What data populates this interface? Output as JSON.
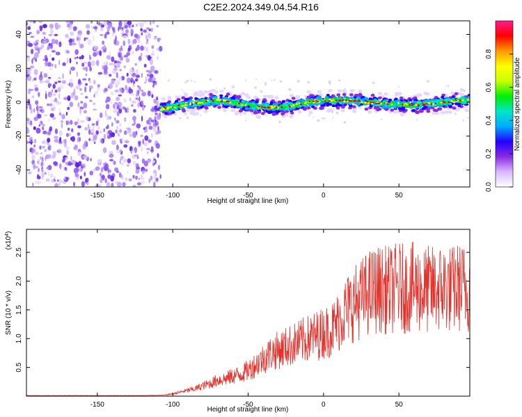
{
  "title": "C2E2.2024.349.04.54.R16",
  "colors": {
    "axis": "#000000",
    "snr_line": "#e8302a",
    "noise_dot": "#7a3cf0",
    "colorbar_stops": [
      "#ffffff",
      "#d9b8ff",
      "#8a2be2",
      "#2200ff",
      "#00aaff",
      "#00e6c8",
      "#00ee00",
      "#c8ff00",
      "#ffff00",
      "#ff9900",
      "#ff0000",
      "#ff1a8c"
    ]
  },
  "chart_data": [
    {
      "type": "heatmap",
      "xlabel": "Height of straight line (km)",
      "ylabel": "Frequency (Hz)",
      "xlim": [
        -197,
        97
      ],
      "ylim": [
        -50,
        48
      ],
      "xticks": [
        -150,
        -100,
        -50,
        0,
        50
      ],
      "yticks": [
        -40,
        -20,
        0,
        20,
        40
      ],
      "colorbar": {
        "label": "Normalized spectral amplitude",
        "range": [
          0.0,
          1.0
        ],
        "ticks": [
          "0.0",
          "0.2",
          "0.4",
          "0.6",
          "0.8"
        ]
      },
      "noise_region_x": [
        -197,
        -108
      ],
      "signal_region_x": [
        -108,
        97
      ],
      "signal_center_freq": [
        [
          -108,
          -4
        ],
        [
          -100,
          -3
        ],
        [
          -90,
          -1
        ],
        [
          -80,
          0
        ],
        [
          -70,
          1
        ],
        [
          -60,
          0
        ],
        [
          -50,
          -2
        ],
        [
          -40,
          -3
        ],
        [
          -30,
          -3
        ],
        [
          -20,
          -2
        ],
        [
          -10,
          0
        ],
        [
          0,
          1
        ],
        [
          10,
          1
        ],
        [
          20,
          1
        ],
        [
          30,
          0
        ],
        [
          40,
          -1
        ],
        [
          50,
          -1
        ],
        [
          60,
          -2
        ],
        [
          70,
          -1
        ],
        [
          80,
          0
        ],
        [
          90,
          1
        ],
        [
          97,
          1
        ]
      ]
    },
    {
      "type": "line",
      "xlabel": "Height of straight line (km)",
      "ylabel": "SNR (10 * v/v)",
      "yunit_multiplier": "(x10",
      "yunit_exponent": "4",
      "yunit_close": ")",
      "xlim": [
        -197,
        97
      ],
      "ylim": [
        0,
        2.9
      ],
      "xticks": [
        -150,
        -100,
        -50,
        0,
        50
      ],
      "yticks": [
        "0.5",
        "1.0",
        "1.5",
        "2.0",
        "2.5"
      ],
      "series": [
        {
          "x": [
            -197,
            -160,
            -120,
            -105,
            -100,
            -95,
            -90,
            -85,
            -80,
            -75,
            -70,
            -65,
            -60,
            -55,
            -50,
            -45,
            -40,
            -35,
            -30,
            -25,
            -20,
            -15,
            -10,
            -5,
            0,
            5,
            10,
            15,
            20,
            25,
            30,
            35,
            40,
            45,
            50,
            55,
            60,
            65,
            70,
            75,
            80,
            85,
            90,
            97
          ],
          "y": [
            0.01,
            0.01,
            0.01,
            0.02,
            0.04,
            0.07,
            0.1,
            0.13,
            0.18,
            0.22,
            0.28,
            0.3,
            0.35,
            0.38,
            0.45,
            0.55,
            0.65,
            0.75,
            0.8,
            0.85,
            0.9,
            0.95,
            1.0,
            1.05,
            1.1,
            1.15,
            1.3,
            1.5,
            1.6,
            1.7,
            1.8,
            1.85,
            1.85,
            1.85,
            1.9,
            1.85,
            1.9,
            1.85,
            1.85,
            1.85,
            1.9,
            1.85,
            1.9,
            1.85
          ]
        }
      ]
    }
  ]
}
